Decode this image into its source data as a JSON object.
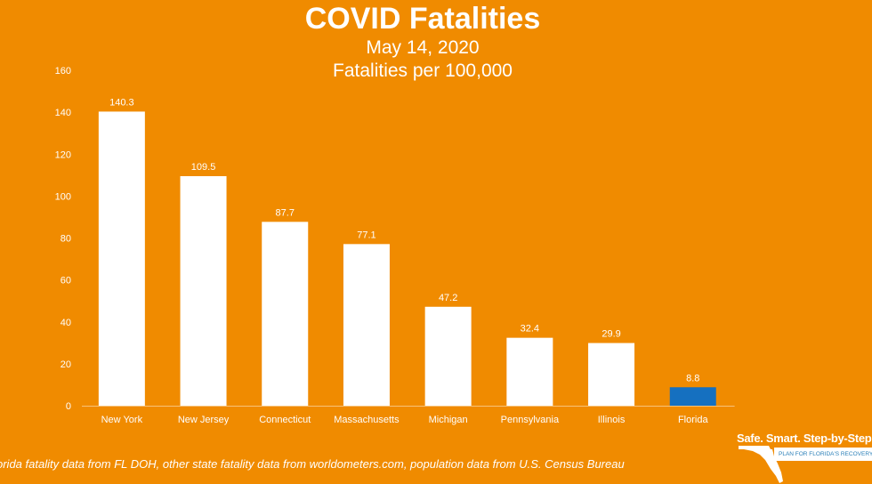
{
  "chart_data": {
    "type": "bar",
    "title": "COVID Fatalities",
    "subtitle": "May 14, 2020",
    "ylabel": "Fatalities per 100,000",
    "xlabel": "",
    "categories": [
      "New York",
      "New Jersey",
      "Connecticut",
      "Massachusetts",
      "Michigan",
      "Pennsylvania",
      "Illinois",
      "Florida"
    ],
    "values": [
      140.3,
      109.5,
      87.7,
      77.1,
      47.2,
      32.4,
      29.9,
      8.8
    ],
    "value_labels": [
      "140.3",
      "109.5",
      "87.7",
      "77.1",
      "47.2",
      "32.4",
      "29.9",
      "8.8"
    ],
    "ylim": [
      0,
      160
    ],
    "yticks": [
      "0",
      "20",
      "40",
      "60",
      "80",
      "100",
      "120",
      "140",
      "160"
    ],
    "grid": false,
    "colors": {
      "default": "#FFFFFF",
      "highlight": "#1570C0",
      "background": "#F08B00"
    },
    "highlight_index": 7
  },
  "footer": {
    "source": "orida fatality data from FL DOH, other state fatality data from worldometers.com, population data from U.S. Census Bureau"
  },
  "logo": {
    "tagline": "Safe. Smart. Step-by-Step.",
    "plan": "PLAN FOR FLORIDA'S RECOVERY"
  }
}
